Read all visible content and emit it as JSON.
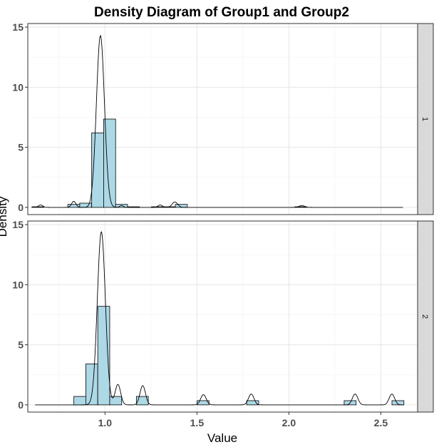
{
  "chart_data": {
    "type": "histogram+density (faceted)",
    "title": "Density Diagram of Group1 and Group2",
    "xlabel": "Value",
    "ylabel": "Density",
    "xlim": [
      0.58,
      2.7
    ],
    "ylim": [
      -0.6,
      15.3
    ],
    "x_ticks": [
      1.0,
      1.5,
      2.0,
      2.5
    ],
    "x_tick_labels": [
      "1.0",
      "1.5",
      "2.0",
      "2.5"
    ],
    "y_ticks": [
      0,
      5,
      10,
      15
    ],
    "y_tick_labels": [
      "0",
      "5",
      "10",
      "15"
    ],
    "grid": true,
    "bin_width": 0.065,
    "bar_fill": "#add8e6",
    "bar_stroke": "#000000",
    "strip_fill": "#d9d9d9",
    "panels": [
      {
        "strip_label": "1",
        "bins": [
          {
            "x": 0.635,
            "density": 0.05
          },
          {
            "x": 0.83,
            "density": 0.25
          },
          {
            "x": 0.895,
            "density": 0.35
          },
          {
            "x": 0.96,
            "density": 6.2
          },
          {
            "x": 1.025,
            "density": 7.35
          },
          {
            "x": 1.09,
            "density": 0.25
          },
          {
            "x": 1.155,
            "density": 0.05
          },
          {
            "x": 1.285,
            "density": 0.05
          },
          {
            "x": 1.35,
            "density": 0.05
          },
          {
            "x": 1.415,
            "density": 0.25
          },
          {
            "x": 2.065,
            "density": 0.05
          }
        ],
        "density_peaks": [
          {
            "mu": 0.975,
            "sigma": 0.022,
            "height": 14.3
          },
          {
            "mu": 0.83,
            "sigma": 0.012,
            "height": 0.5
          },
          {
            "mu": 0.65,
            "sigma": 0.012,
            "height": 0.2
          },
          {
            "mu": 1.09,
            "sigma": 0.01,
            "height": 0.15
          },
          {
            "mu": 1.3,
            "sigma": 0.012,
            "height": 0.2
          },
          {
            "mu": 1.38,
            "sigma": 0.015,
            "height": 0.45
          },
          {
            "mu": 2.07,
            "sigma": 0.015,
            "height": 0.15
          }
        ],
        "density_range": [
          0.62,
          2.62
        ]
      },
      {
        "strip_label": "2",
        "bins": [
          {
            "x": 0.863,
            "density": 0.7
          },
          {
            "x": 0.928,
            "density": 3.4
          },
          {
            "x": 0.993,
            "density": 8.2
          },
          {
            "x": 1.058,
            "density": 0.7
          },
          {
            "x": 1.203,
            "density": 0.7
          },
          {
            "x": 1.533,
            "density": 0.35
          },
          {
            "x": 1.803,
            "density": 0.35
          },
          {
            "x": 2.333,
            "density": 0.35
          },
          {
            "x": 2.593,
            "density": 0.35
          }
        ],
        "density_peaks": [
          {
            "mu": 0.98,
            "sigma": 0.022,
            "height": 14.4
          },
          {
            "mu": 1.07,
            "sigma": 0.015,
            "height": 1.7
          },
          {
            "mu": 1.205,
            "sigma": 0.015,
            "height": 1.6
          },
          {
            "mu": 1.535,
            "sigma": 0.015,
            "height": 0.85
          },
          {
            "mu": 1.795,
            "sigma": 0.015,
            "height": 0.9
          },
          {
            "mu": 2.36,
            "sigma": 0.015,
            "height": 0.9
          },
          {
            "mu": 2.56,
            "sigma": 0.015,
            "height": 0.9
          }
        ],
        "density_range": [
          0.62,
          2.62
        ]
      }
    ]
  }
}
